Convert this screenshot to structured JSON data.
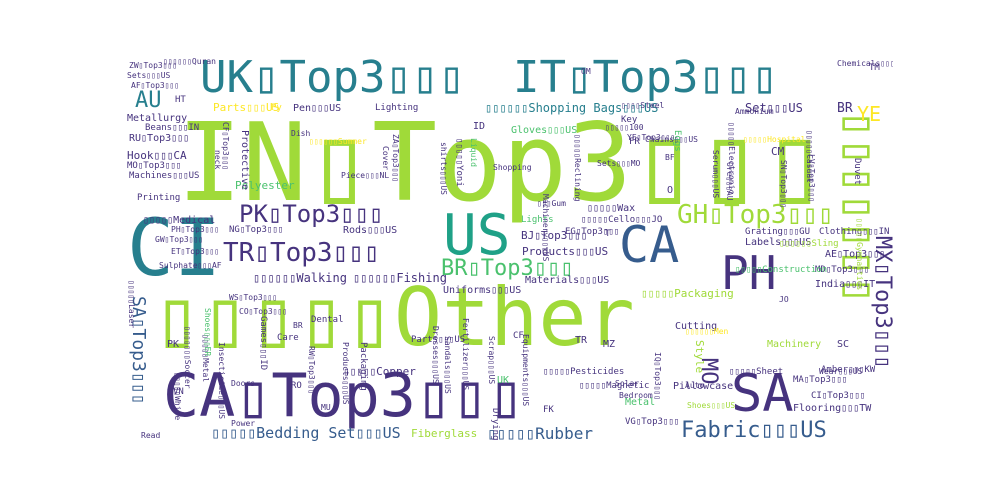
{
  "palette": {
    "background": "#ffffff",
    "colors": [
      "#440154",
      "#46337e",
      "#365c8d",
      "#277f8e",
      "#1fa187",
      "#4ac16d",
      "#a0da39",
      "#fde725"
    ]
  },
  "words": [
    {
      "text": "IN▯Top3▯▯▯",
      "color": "#a0da39"
    },
    {
      "text": "▯▯▯▯▯Other",
      "color": "#a0da39"
    },
    {
      "text": "CA▯Top3▯▯▯",
      "color": "#46337e"
    },
    {
      "text": "UK▯Top3▯▯▯",
      "color": "#277f8e"
    },
    {
      "text": "IT▯Top3▯▯▯",
      "color": "#277f8e"
    },
    {
      "text": "CI",
      "color": "#277f8e"
    },
    {
      "text": "SA",
      "color": "#46337e"
    },
    {
      "text": "US",
      "color": "#1fa187"
    },
    {
      "text": "CA",
      "color": "#365c8d"
    },
    {
      "text": "PH",
      "color": "#46337e"
    },
    {
      "text": "▯▯▯▯▯▯▯",
      "color": "#a0da39"
    },
    {
      "text": "GH▯Top3▯▯▯",
      "color": "#a0da39"
    },
    {
      "text": "PK▯Top3▯▯▯",
      "color": "#46337e"
    },
    {
      "text": "TR▯Top3▯▯▯",
      "color": "#46337e"
    },
    {
      "text": "BR▯Top3▯▯▯",
      "color": "#4ac16d"
    },
    {
      "text": "MX▯Top3▯▯▯",
      "color": "#46337e"
    },
    {
      "text": "SA▯Top3▯▯▯",
      "color": "#365c8d"
    },
    {
      "text": "Fabric▯▯▯US",
      "color": "#365c8d"
    },
    {
      "text": "▯▯▯▯▯Rubber",
      "color": "#365c8d"
    },
    {
      "text": "AU",
      "color": "#277f8e"
    },
    {
      "text": "YE",
      "color": "#fde725"
    },
    {
      "text": "MO",
      "color": "#46337e"
    },
    {
      "text": "▯▯▯▯▯Bedding Set▯▯▯US",
      "color": "#365c8d"
    },
    {
      "text": "▯▯▯▯▯▯Shopping Bags▯▯▯US",
      "color": "#277f8e"
    },
    {
      "text": "Set▯▯▯US",
      "color": "#46337e"
    },
    {
      "text": "BR",
      "color": "#46337e"
    },
    {
      "text": "CM",
      "color": "#46337e"
    },
    {
      "text": "▯▯▯▯▯Packaging",
      "color": "#a0da39"
    },
    {
      "text": "Polyester",
      "color": "#4ac16d"
    },
    {
      "text": "Protective",
      "color": "#46337e"
    },
    {
      "text": "▯▯▯▯▯▯Walking",
      "color": "#46337e"
    },
    {
      "text": "▯▯▯▯▯▯Fishing",
      "color": "#46337e"
    },
    {
      "text": "Products▯▯▯US",
      "color": "#46337e"
    },
    {
      "text": "BJ▯Top3▯▯▯",
      "color": "#46337e"
    },
    {
      "text": "Uniforms▯▯▯US",
      "color": "#46337e"
    },
    {
      "text": "Materials▯▯▯US",
      "color": "#46337e"
    },
    {
      "text": "Cutting",
      "color": "#46337e"
    },
    {
      "text": "Style",
      "color": "#a0da39"
    },
    {
      "text": "Machinery",
      "color": "#a0da39"
    },
    {
      "text": "▯▯▯▯▯Copper",
      "color": "#46337e"
    },
    {
      "text": "Fiberglass",
      "color": "#a0da39"
    },
    {
      "text": "Pillowcase",
      "color": "#46337e"
    },
    {
      "text": "Flooring▯▯▯TW",
      "color": "#46337e"
    },
    {
      "text": "Labels▯▯▯US",
      "color": "#46337e"
    },
    {
      "text": "India▯▯▯IT",
      "color": "#46337e"
    },
    {
      "text": "AE▯Top3▯▯▯",
      "color": "#46337e"
    },
    {
      "text": "MD▯Top3▯▯▯",
      "color": "#46337e"
    },
    {
      "text": "MA▯Top3▯▯▯",
      "color": "#46337e"
    },
    {
      "text": "CI▯Top3▯▯▯",
      "color": "#46337e"
    },
    {
      "text": "Parts▯▯▯US",
      "color": "#fde725"
    },
    {
      "text": "Pen▯▯▯US",
      "color": "#46337e"
    },
    {
      "text": "Lighting",
      "color": "#46337e"
    },
    {
      "text": "Hook▯▯▯CA",
      "color": "#46337e"
    },
    {
      "text": "RU▯Top3▯▯▯",
      "color": "#46337e"
    },
    {
      "text": "Metallurgy",
      "color": "#46337e"
    },
    {
      "text": "Beans▯▯▯IN",
      "color": "#46337e"
    },
    {
      "text": "MO▯Top3▯▯▯",
      "color": "#46337e"
    },
    {
      "text": "Machines▯▯▯US",
      "color": "#46337e"
    },
    {
      "text": "Printing",
      "color": "#46337e"
    },
    {
      "text": "▯▯▯▯▯Medical",
      "color": "#46337e"
    },
    {
      "text": "NG▯Top3▯▯▯",
      "color": "#46337e"
    },
    {
      "text": "Rods▯▯▯US",
      "color": "#46337e"
    },
    {
      "text": "Gloves▯▯▯US",
      "color": "#4ac16d"
    },
    {
      "text": "ID",
      "color": "#46337e"
    },
    {
      "text": "▯▯▯▯▯Wax",
      "color": "#46337e"
    },
    {
      "text": "▯▯▯▯▯Cello▯▯▯JO",
      "color": "#46337e"
    },
    {
      "text": "EG▯Top3▯▯▯",
      "color": "#46337e"
    },
    {
      "text": "Grating▯▯▯GU",
      "color": "#46337e"
    },
    {
      "text": "Clothing▯▯▯IN",
      "color": "#46337e"
    },
    {
      "text": "▯▯▯▯▯▯Sling",
      "color": "#a0da39"
    },
    {
      "text": "Amber▯▯▯KW",
      "color": "#46337e"
    },
    {
      "text": "▯▯▯▯▯Sheet",
      "color": "#46337e"
    },
    {
      "text": "▯▯▯▯▯Pesticides",
      "color": "#46337e"
    },
    {
      "text": "▯▯▯▯▯Magnetic",
      "color": "#46337e"
    },
    {
      "text": "VG▯Top3▯▯▯",
      "color": "#46337e"
    },
    {
      "text": "Shoes▯▯▯US",
      "color": "#a0da39"
    },
    {
      "text": "Metal",
      "color": "#4ac16d"
    },
    {
      "text": "UK",
      "color": "#4ac16d"
    },
    {
      "text": "FK",
      "color": "#46337e"
    },
    {
      "text": "CF",
      "color": "#46337e"
    },
    {
      "text": "TR",
      "color": "#46337e"
    },
    {
      "text": "MZ",
      "color": "#46337e"
    },
    {
      "text": "PK",
      "color": "#46337e"
    },
    {
      "text": "VN",
      "color": "#46337e"
    },
    {
      "text": "RO",
      "color": "#46337e"
    },
    {
      "text": "MU",
      "color": "#46337e"
    },
    {
      "text": "Read",
      "color": "#46337e"
    },
    {
      "text": "Care",
      "color": "#46337e"
    },
    {
      "text": "BR",
      "color": "#46337e"
    },
    {
      "text": "SC",
      "color": "#46337e"
    },
    {
      "text": "HT",
      "color": "#46337e"
    },
    {
      "text": "Py",
      "color": "#fde725"
    },
    {
      "text": "TM",
      "color": "#46337e"
    },
    {
      "text": "OM",
      "color": "#46337e"
    },
    {
      "text": "Key",
      "color": "#46337e"
    },
    {
      "text": "FR",
      "color": "#46337e"
    },
    {
      "text": "BF",
      "color": "#46337e"
    },
    {
      "text": "O",
      "color": "#46337e"
    },
    {
      "text": "T",
      "color": "#46337e"
    },
    {
      "text": "Eggs",
      "color": "#4ac16d"
    },
    {
      "text": "Ammonium",
      "color": "#46337e"
    },
    {
      "text": "▯▯▯▯Steel",
      "color": "#46337e"
    },
    {
      "text": "▯▯▯▯▯Electronic",
      "color": "#46337e"
    },
    {
      "text": "▯▯▯▯▯Casual",
      "color": "#46337e"
    },
    {
      "text": "Duvet",
      "color": "#46337e"
    },
    {
      "text": "▯▯▯Gum",
      "color": "#46337e"
    },
    {
      "text": "Sets▯▯▯MO",
      "color": "#46337e"
    },
    {
      "text": "Serum▯▯▯US",
      "color": "#46337e"
    },
    {
      "text": "YE▯Top3▯▯▯",
      "color": "#46337e"
    },
    {
      "text": "Lights",
      "color": "#4ac16d"
    },
    {
      "text": "Machinery▯▯▯US",
      "color": "#46337e"
    },
    {
      "text": "Scrap▯▯▯US",
      "color": "#46337e"
    },
    {
      "text": "Sandals▯▯▯US",
      "color": "#46337e"
    },
    {
      "text": "Dresses▯▯▯US",
      "color": "#46337e"
    },
    {
      "text": "Parts▯▯▯US",
      "color": "#46337e"
    },
    {
      "text": "Fertilizer▯▯▯US",
      "color": "#46337e"
    },
    {
      "text": "Equipments▯▯▯US",
      "color": "#46337e"
    },
    {
      "text": "Products▯▯▯US",
      "color": "#46337e"
    },
    {
      "text": "Packaging",
      "color": "#46337e"
    },
    {
      "text": "Dental",
      "color": "#46337e"
    },
    {
      "text": "Games▯▯▯ID",
      "color": "#46337e"
    },
    {
      "text": "CO▯Top3▯▯▯",
      "color": "#46337e"
    },
    {
      "text": "WS▯Top3▯▯▯",
      "color": "#46337e"
    },
    {
      "text": "Insecticide▯▯▯US",
      "color": "#46337e"
    },
    {
      "text": "▯▯▯▯▯Metal",
      "color": "#46337e"
    },
    {
      "text": "▯▯▯▯▯White",
      "color": "#46337e"
    },
    {
      "text": "▯▯▯▯▯▯▯Soccer",
      "color": "#46337e"
    },
    {
      "text": "Shoes▯▯▯ER",
      "color": "#4ac16d"
    },
    {
      "text": "PH▯Top3▯▯▯",
      "color": "#46337e"
    },
    {
      "text": "GW▯Top3▯▯▯",
      "color": "#46337e"
    },
    {
      "text": "ET▯Top3▯▯▯",
      "color": "#46337e"
    },
    {
      "text": "Sulphate▯▯▯AF",
      "color": "#46337e"
    },
    {
      "text": "shirts▯▯▯US",
      "color": "#46337e"
    },
    {
      "text": "Liquid",
      "color": "#4ac16d"
    },
    {
      "text": "▯▯▯▯▯Yoni",
      "color": "#46337e"
    },
    {
      "text": "▯▯▯▯▯Reclining",
      "color": "#46337e"
    },
    {
      "text": "ZA▯Top3▯▯▯",
      "color": "#46337e"
    },
    {
      "text": "Cover",
      "color": "#46337e"
    },
    {
      "text": "Piece▯▯▯NL",
      "color": "#46337e"
    },
    {
      "text": "CF▯Top3▯▯▯",
      "color": "#46337e"
    },
    {
      "text": "neck",
      "color": "#46337e"
    },
    {
      "text": "▯▯▯▯▯Construction",
      "color": "#4ac16d"
    },
    {
      "text": "▯▯▯▯▯Laser",
      "color": "#46337e"
    },
    {
      "text": "▯▯▯▯▯▯Quran",
      "color": "#46337e"
    },
    {
      "text": "Sets▯▯▯US",
      "color": "#46337e"
    },
    {
      "text": "AF▯Top3▯▯▯",
      "color": "#46337e"
    },
    {
      "text": "ZW▯Top3▯▯▯",
      "color": "#46337e"
    },
    {
      "text": "Chemicals▯▯▯AF",
      "color": "#46337e"
    },
    {
      "text": "LV▯Top3▯▯▯",
      "color": "#46337e"
    },
    {
      "text": "SN▯Top3▯▯▯",
      "color": "#46337e"
    },
    {
      "text": "Ore▯▯▯AU",
      "color": "#46337e"
    },
    {
      "text": "Wear▯▯▯US",
      "color": "#46337e"
    },
    {
      "text": "Chains▯▯▯US",
      "color": "#46337e"
    },
    {
      "text": "▯▯▯▯▯100",
      "color": "#46337e"
    },
    {
      "text": "▯▯▯▯▯▯Men",
      "color": "#fde725"
    },
    {
      "text": "▯▯▯▯▯▯Summer",
      "color": "#fde725"
    },
    {
      "text": "▯▯▯▯▯Hospital",
      "color": "#fde725"
    },
    {
      "text": "▯▯▯▯▯Gymnastics",
      "color": "#a0da39"
    },
    {
      "text": "RW▯Top3▯▯▯",
      "color": "#46337e"
    },
    {
      "text": "IQ▯Top3▯▯▯",
      "color": "#46337e"
    },
    {
      "text": "Solar",
      "color": "#46337e"
    },
    {
      "text": "Auto",
      "color": "#46337e"
    },
    {
      "text": "Bedroom",
      "color": "#46337e"
    },
    {
      "text": "Drying",
      "color": "#46337e"
    },
    {
      "text": "Power",
      "color": "#46337e"
    },
    {
      "text": "Doors",
      "color": "#46337e"
    },
    {
      "text": "Dish",
      "color": "#46337e"
    },
    {
      "text": "Shopping",
      "color": "#46337e"
    },
    {
      "text": "JO",
      "color": "#46337e"
    }
  ]
}
